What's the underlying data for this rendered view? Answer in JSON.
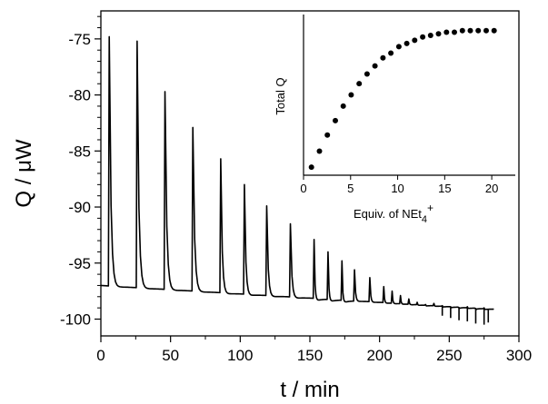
{
  "chart_data": [
    {
      "type": "line",
      "xlabel": "t / min",
      "ylabel": "Q / μW",
      "xlim": [
        0,
        300
      ],
      "ylim": [
        -101.5,
        -72.5
      ],
      "xticks": [
        0,
        50,
        100,
        150,
        200,
        250,
        300
      ],
      "yticks": [
        -75,
        -80,
        -85,
        -90,
        -95,
        -100
      ],
      "line_color": "#000000",
      "series": [
        {
          "baseline_start": -97.0,
          "baseline_end": -99.1,
          "t_end": 282,
          "injections": [
            {
              "t": 6,
              "peak": -74.8
            },
            {
              "t": 26,
              "peak": -75.2
            },
            {
              "t": 46,
              "peak": -79.7
            },
            {
              "t": 66,
              "peak": -82.9
            },
            {
              "t": 86,
              "peak": -85.7
            },
            {
              "t": 103,
              "peak": -88.0
            },
            {
              "t": 119,
              "peak": -89.9
            },
            {
              "t": 136,
              "peak": -91.5
            },
            {
              "t": 153,
              "peak": -92.9
            },
            {
              "t": 163,
              "peak": -94.0
            },
            {
              "t": 173,
              "peak": -94.8
            },
            {
              "t": 182,
              "peak": -95.6
            },
            {
              "t": 193,
              "peak": -96.3
            },
            {
              "t": 203,
              "peak": -97.1
            },
            {
              "t": 209,
              "peak": -97.5
            },
            {
              "t": 215,
              "peak": -97.9
            },
            {
              "t": 221,
              "peak": -98.2
            },
            {
              "t": 227,
              "peak": -98.5
            },
            {
              "t": 233,
              "peak": -98.7
            },
            {
              "t": 239,
              "peak": -98.6
            },
            {
              "t": 245,
              "peak": -98.8
            },
            {
              "t": 251,
              "peak": -98.9
            },
            {
              "t": 257,
              "peak": -99.0
            },
            {
              "t": 263,
              "peak": -98.9
            },
            {
              "t": 269,
              "peak": -99.1
            },
            {
              "t": 275,
              "peak": -99.0
            }
          ],
          "dips": [
            {
              "t": 245,
              "low": -99.7
            },
            {
              "t": 251,
              "low": -99.9
            },
            {
              "t": 257,
              "low": -100.1
            },
            {
              "t": 263,
              "low": -100.2
            },
            {
              "t": 269,
              "low": -100.4
            },
            {
              "t": 275,
              "low": -100.5
            },
            {
              "t": 278,
              "low": -100.3
            }
          ]
        }
      ]
    },
    {
      "type": "scatter",
      "xlabel": "Equiv. of NEt",
      "xlabel_sub": "4",
      "xlabel_sup": "+",
      "ylabel": "Total Q",
      "xlim": [
        0,
        22.5
      ],
      "ylim": [
        0,
        1
      ],
      "xticks": [
        0,
        5,
        10,
        15,
        20
      ],
      "marker_color": "#000000",
      "x": [
        0.84,
        1.69,
        2.53,
        3.38,
        4.22,
        5.06,
        5.91,
        6.75,
        7.59,
        8.44,
        9.28,
        10.13,
        10.97,
        11.81,
        12.66,
        13.5,
        14.34,
        15.19,
        16.03,
        16.88,
        17.72,
        18.56,
        19.41,
        20.25
      ],
      "y": [
        0.05,
        0.15,
        0.25,
        0.34,
        0.43,
        0.5,
        0.57,
        0.63,
        0.68,
        0.73,
        0.76,
        0.8,
        0.82,
        0.84,
        0.86,
        0.87,
        0.88,
        0.89,
        0.89,
        0.9,
        0.9,
        0.9,
        0.9,
        0.9
      ]
    }
  ]
}
